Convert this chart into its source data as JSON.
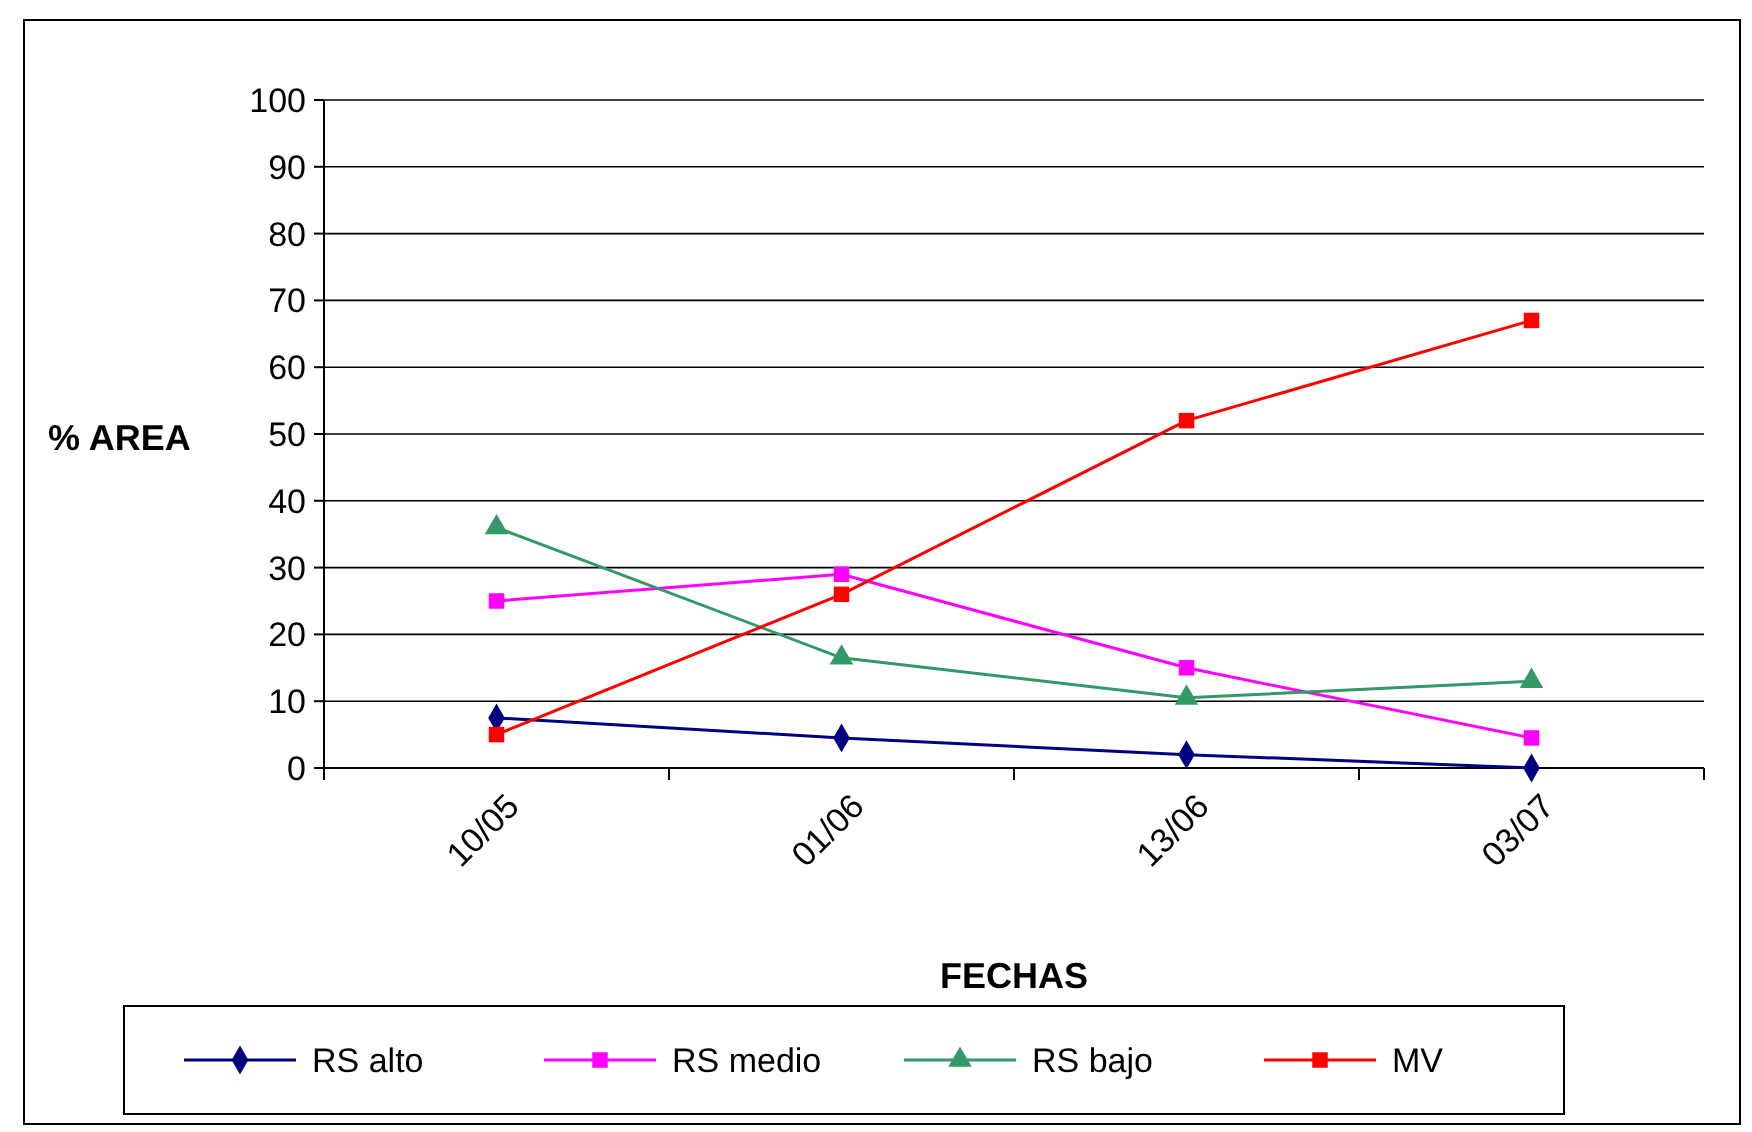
{
  "chart_data": {
    "type": "line",
    "xlabel": "FECHAS",
    "ylabel": "% AREA",
    "categories": [
      "10/05",
      "01/06",
      "13/06",
      "03/07"
    ],
    "series": [
      {
        "name": "RS alto",
        "color": "#000080",
        "marker": "diamond",
        "values": [
          7.5,
          4.5,
          2,
          0
        ]
      },
      {
        "name": "RS medio",
        "color": "#ff00ff",
        "marker": "square",
        "values": [
          25,
          29,
          15,
          4.5
        ]
      },
      {
        "name": "RS bajo",
        "color": "#339966",
        "marker": "triangle",
        "values": [
          36,
          16.5,
          10.5,
          13
        ]
      },
      {
        "name": "MV",
        "color": "#ff0000",
        "marker": "square",
        "values": [
          5,
          26,
          52,
          67
        ]
      }
    ],
    "ylim": [
      0,
      100
    ],
    "yticks": [
      0,
      10,
      20,
      30,
      40,
      50,
      60,
      70,
      80,
      90,
      100
    ],
    "grid": "y",
    "legend": "bottom"
  }
}
